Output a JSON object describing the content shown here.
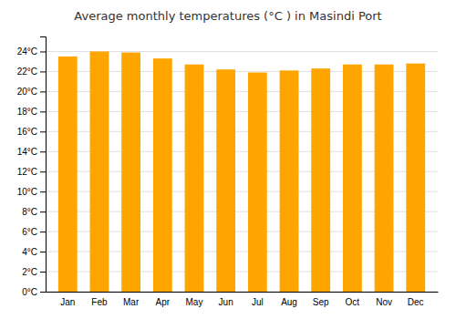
{
  "chart_data": {
    "type": "bar",
    "title": "Average monthly temperatures (°C ) in Masindi Port",
    "categories": [
      "Jan",
      "Feb",
      "Mar",
      "Apr",
      "May",
      "Jun",
      "Jul",
      "Aug",
      "Sep",
      "Oct",
      "Nov",
      "Dec"
    ],
    "values": [
      23.5,
      24.0,
      23.9,
      23.3,
      22.7,
      22.2,
      21.9,
      22.1,
      22.3,
      22.7,
      22.7,
      22.8
    ],
    "color": "#FFA500",
    "ylim": [
      0,
      25.5
    ],
    "yticks": [
      {
        "value": 0,
        "label": "0°C"
      },
      {
        "value": 2,
        "label": "2°C"
      },
      {
        "value": 4,
        "label": "4°C"
      },
      {
        "value": 6,
        "label": "6°C"
      },
      {
        "value": 8,
        "label": "8°C"
      },
      {
        "value": 10,
        "label": "10°C"
      },
      {
        "value": 12,
        "label": "12°C"
      },
      {
        "value": 14,
        "label": "14°C"
      },
      {
        "value": 16,
        "label": "16°C"
      },
      {
        "value": 18,
        "label": "18°C"
      },
      {
        "value": 20,
        "label": "20°C"
      },
      {
        "value": 22,
        "label": "22°C"
      },
      {
        "value": 24,
        "label": "24°C"
      }
    ],
    "grid": true
  }
}
